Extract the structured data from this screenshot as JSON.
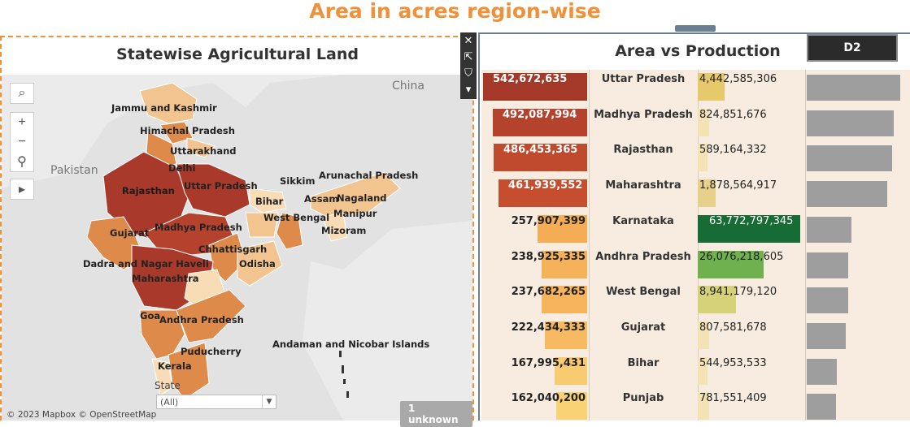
{
  "dashboard": {
    "title": "Area in acres region-wise"
  },
  "map": {
    "title": "Statewise Agricultural Land",
    "geo_labels": [
      "China",
      "Pakistan"
    ],
    "state_labels": [
      "Jammu and Kashmir",
      "Himachal Pradesh",
      "Uttarakhand",
      "Delhi",
      "Rajasthan",
      "Uttar Pradesh",
      "Sikkim",
      "Arunachal Pradesh",
      "Bihar",
      "Assam",
      "Nagaland",
      "Manipur",
      "West Bengal",
      "Mizoram",
      "Gujarat",
      "Madhya Pradesh",
      "Chhattisgarh",
      "Dadra and Nagar Haveli",
      "Odisha",
      "Maharashtra",
      "Goa",
      "Andhra Pradesh",
      "Puducherry",
      "Kerala",
      "Andaman and Nicobar Islands"
    ],
    "filter_label": "State",
    "filter_value": "(All)",
    "copyright": "© 2023 Mapbox © OpenStreetMap",
    "unknown_badge": "1 unknown",
    "controls": {
      "search": "search-icon",
      "zoom_in": "+",
      "zoom_out": "−",
      "pin": "pin-icon",
      "play": "play-icon"
    },
    "toolbar": [
      "close-icon",
      "expand-icon",
      "filter-icon",
      "dropdown-icon"
    ],
    "colors": {
      "dark": "#a93a2b",
      "mid": "#dd8a4a",
      "light": "#f2c48f",
      "pale": "#f7dcb6"
    }
  },
  "area_vs_production": {
    "title": "Area vs Production",
    "sheet_tab": "D2",
    "rows": [
      {
        "state": "Uttar Pradesh",
        "area": "542,672,635",
        "area_num": 542672635,
        "production": "4,442,585,306",
        "prod_num": 4442585306,
        "area_color": "#a4392a",
        "prod_color": "#e6c96a",
        "area_text_color": "#ffffff",
        "prod_text_color": "#222222",
        "right_share": 0.81
      },
      {
        "state": "Madhya Pradesh",
        "area": "492,087,994",
        "area_num": 492087994,
        "production": "824,851,676",
        "prod_num": 824851676,
        "area_color": "#b5422c",
        "prod_color": "#f3e2b4",
        "area_text_color": "#ffffff",
        "prod_text_color": "#222222",
        "right_share": 0.75
      },
      {
        "state": "Rajasthan",
        "area": "486,453,365",
        "area_num": 486453365,
        "production": "589,164,332",
        "prod_num": 589164332,
        "area_color": "#c04a2d",
        "prod_color": "#f3e2b4",
        "area_text_color": "#ffffff",
        "prod_text_color": "#222222",
        "right_share": 0.74
      },
      {
        "state": "Maharashtra",
        "area": "461,939,552",
        "area_num": 461939552,
        "production": "1,878,564,917",
        "prod_num": 1878564917,
        "area_color": "#c64e2e",
        "prod_color": "#e7d18a",
        "area_text_color": "#ffffff",
        "prod_text_color": "#222222",
        "right_share": 0.7
      },
      {
        "state": "Karnataka",
        "area": "257,907,399",
        "area_num": 257907399,
        "production": "63,772,797,345",
        "prod_num": 63772797345,
        "area_color": "#f5ad55",
        "prod_color": "#176b34",
        "area_text_color": "#222222",
        "prod_text_color": "#ffffff",
        "right_share": 0.39
      },
      {
        "state": "Andhra Pradesh",
        "area": "238,925,335",
        "area_num": 238925335,
        "production": "26,076,218,605",
        "prod_num": 26076218605,
        "area_color": "#f6b25a",
        "prod_color": "#6fb04f",
        "area_text_color": "#222222",
        "prod_text_color": "#222222",
        "right_share": 0.36
      },
      {
        "state": "West Bengal",
        "area": "237,682,265",
        "area_num": 237682265,
        "production": "8,941,179,120",
        "prod_num": 8941179120,
        "area_color": "#f6b45c",
        "prod_color": "#d6d27a",
        "area_text_color": "#222222",
        "prod_text_color": "#222222",
        "right_share": 0.36
      },
      {
        "state": "Gujarat",
        "area": "222,434,333",
        "area_num": 222434333,
        "production": "807,581,678",
        "prod_num": 807581678,
        "area_color": "#f7b961",
        "prod_color": "#f3e2b4",
        "area_text_color": "#222222",
        "prod_text_color": "#222222",
        "right_share": 0.34
      },
      {
        "state": "Bihar",
        "area": "167,995,431",
        "area_num": 167995431,
        "production": "544,953,533",
        "prod_num": 544953533,
        "area_color": "#f8cb70",
        "prod_color": "#f3e2b4",
        "area_text_color": "#222222",
        "prod_text_color": "#222222",
        "right_share": 0.26
      },
      {
        "state": "Punjab",
        "area": "162,040,200",
        "area_num": 162040200,
        "production": "781,551,409",
        "prod_num": 781551409,
        "area_color": "#f8d274",
        "prod_color": "#f3e2b4",
        "area_text_color": "#222222",
        "prod_text_color": "#222222",
        "right_share": 0.25
      }
    ]
  }
}
